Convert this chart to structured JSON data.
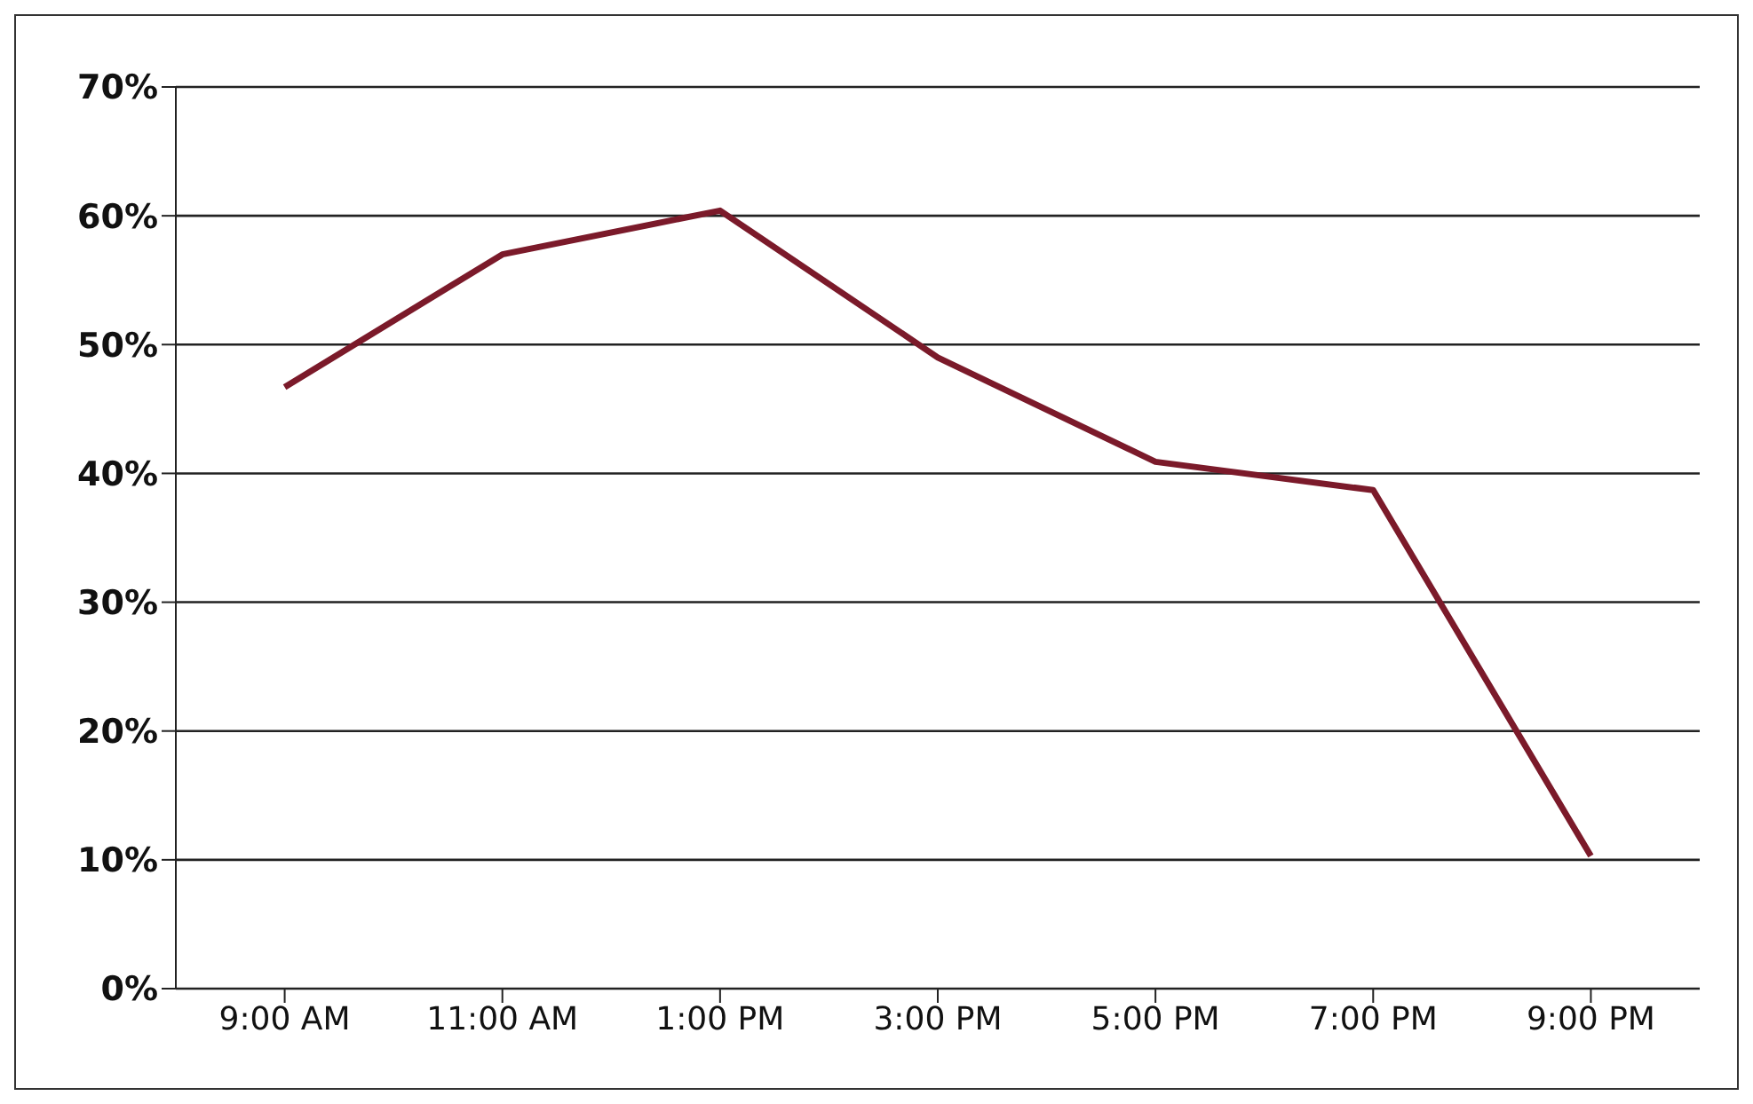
{
  "chart_data": {
    "type": "line",
    "categories": [
      "9:00 AM",
      "11:00 AM",
      "1:00 PM",
      "3:00 PM",
      "5:00 PM",
      "7:00 PM",
      "9:00 PM"
    ],
    "series": [
      {
        "color": "#7b1a2a",
        "values": [
          46.7,
          57,
          60.4,
          49,
          40.9,
          38.7,
          10.3
        ]
      }
    ],
    "ylim": [
      0,
      70
    ],
    "yticks": [
      {
        "value": 0,
        "label": "0%"
      },
      {
        "value": 10,
        "label": "10%"
      },
      {
        "value": 20,
        "label": "20%"
      },
      {
        "value": 30,
        "label": "30%"
      },
      {
        "value": 40,
        "label": "40%"
      },
      {
        "value": 50,
        "label": "50%"
      },
      {
        "value": 60,
        "label": "60%"
      },
      {
        "value": 70,
        "label": "70%"
      }
    ],
    "grid": "y",
    "marker": "none",
    "line_style": "solid",
    "legend": false
  }
}
